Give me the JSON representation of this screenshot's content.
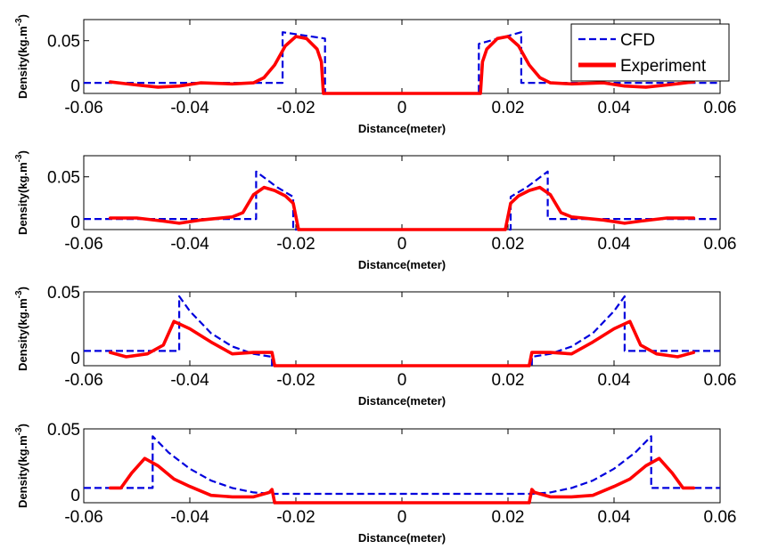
{
  "chart_data": [
    {
      "type": "line",
      "panel": 1,
      "xlabel": "Distance(meter)",
      "ylabel": "Density(kg.m^-3)",
      "xlim": [
        -0.06,
        0.06
      ],
      "ylim": [
        0,
        0.07
      ],
      "xticks": [
        "-0.06",
        "-0.04",
        "-0.02",
        "0",
        "0.02",
        "0.04",
        "0.06"
      ],
      "xtick_values": [
        -0.06,
        -0.04,
        -0.02,
        0,
        0.02,
        0.04,
        0.06
      ],
      "yticks": [
        "0",
        "0.05"
      ],
      "ytick_values": [
        0,
        0.05
      ],
      "legend": {
        "position": "top-right",
        "entries": [
          "CFD",
          "Experiment"
        ]
      },
      "series": [
        {
          "name": "CFD",
          "style": "dashed",
          "color": "#0000dd",
          "x": [
            -0.06,
            -0.0225,
            -0.0225,
            -0.0145,
            -0.0145,
            0.0145,
            0.0145,
            0.0225,
            0.0225,
            0.06
          ],
          "y": [
            0.01,
            0.01,
            0.058,
            0.052,
            0,
            0,
            0.047,
            0.058,
            0.01,
            0.01
          ]
        },
        {
          "name": "Experiment",
          "style": "solid",
          "color": "#ff0000",
          "x": [
            -0.055,
            -0.05,
            -0.046,
            -0.042,
            -0.038,
            -0.032,
            -0.028,
            -0.026,
            -0.024,
            -0.022,
            -0.02,
            -0.018,
            -0.016,
            -0.0152,
            -0.0148,
            0.0148,
            0.0152,
            0.016,
            0.018,
            0.02,
            0.022,
            0.024,
            0.026,
            0.028,
            0.032,
            0.038,
            0.042,
            0.046,
            0.05,
            0.055
          ],
          "y": [
            0.011,
            0.008,
            0.006,
            0.007,
            0.01,
            0.009,
            0.01,
            0.015,
            0.027,
            0.045,
            0.054,
            0.052,
            0.042,
            0.03,
            0,
            0,
            0.03,
            0.042,
            0.052,
            0.054,
            0.045,
            0.027,
            0.015,
            0.01,
            0.009,
            0.01,
            0.007,
            0.006,
            0.008,
            0.011
          ]
        }
      ]
    },
    {
      "type": "line",
      "panel": 2,
      "xlabel": "Distance(meter)",
      "ylabel": "Density(kg.m^-3)",
      "xlim": [
        -0.06,
        0.06
      ],
      "ylim": [
        0,
        0.07
      ],
      "xticks": [
        "-0.06",
        "-0.04",
        "-0.02",
        "0",
        "0.02",
        "0.04",
        "0.06"
      ],
      "xtick_values": [
        -0.06,
        -0.04,
        -0.02,
        0,
        0.02,
        0.04,
        0.06
      ],
      "yticks": [
        "0",
        "0.05"
      ],
      "ytick_values": [
        0,
        0.05
      ],
      "series": [
        {
          "name": "CFD",
          "style": "dashed",
          "color": "#0000dd",
          "x": [
            -0.06,
            -0.0275,
            -0.0275,
            -0.0235,
            -0.0205,
            -0.0205,
            0.0205,
            0.0205,
            0.0235,
            0.0275,
            0.0275,
            0.06
          ],
          "y": [
            0.01,
            0.01,
            0.055,
            0.04,
            0.031,
            0,
            0,
            0.031,
            0.04,
            0.055,
            0.01,
            0.01
          ]
        },
        {
          "name": "Experiment",
          "style": "solid",
          "color": "#ff0000",
          "x": [
            -0.055,
            -0.05,
            -0.045,
            -0.042,
            -0.038,
            -0.032,
            -0.03,
            -0.028,
            -0.026,
            -0.024,
            -0.022,
            -0.0205,
            -0.0195,
            0.0195,
            0.0205,
            0.022,
            0.024,
            0.026,
            0.028,
            0.03,
            0.032,
            0.038,
            0.042,
            0.045,
            0.05,
            0.055
          ],
          "y": [
            0.011,
            0.011,
            0.008,
            0.006,
            0.009,
            0.012,
            0.016,
            0.033,
            0.04,
            0.037,
            0.032,
            0.025,
            0,
            0,
            0.025,
            0.032,
            0.037,
            0.04,
            0.033,
            0.016,
            0.012,
            0.009,
            0.006,
            0.008,
            0.011,
            0.011
          ]
        }
      ]
    },
    {
      "type": "line",
      "panel": 3,
      "xlabel": "Distance(meter)",
      "ylabel": "Density(kg.m^-3)",
      "xlim": [
        -0.06,
        0.06
      ],
      "ylim": [
        0,
        0.05
      ],
      "xticks": [
        "-0.06",
        "-0.04",
        "-0.02",
        "0",
        "0.02",
        "0.04",
        "0.06"
      ],
      "xtick_values": [
        -0.06,
        -0.04,
        -0.02,
        0,
        0.02,
        0.04,
        0.06
      ],
      "yticks": [
        "0",
        "0.05"
      ],
      "ytick_values": [
        0,
        0.05
      ],
      "series": [
        {
          "name": "CFD",
          "style": "dashed",
          "color": "#0000dd",
          "x": [
            -0.06,
            -0.042,
            -0.042,
            -0.04,
            -0.036,
            -0.032,
            -0.028,
            -0.0245,
            -0.0245,
            0.0245,
            0.0245,
            0.028,
            0.032,
            0.036,
            0.04,
            0.042,
            0.042,
            0.06
          ],
          "y": [
            0.01,
            0.01,
            0.047,
            0.037,
            0.022,
            0.013,
            0.008,
            0.006,
            0,
            0,
            0.006,
            0.008,
            0.013,
            0.022,
            0.037,
            0.047,
            0.01,
            0.01
          ]
        },
        {
          "name": "Experiment",
          "style": "solid",
          "color": "#ff0000",
          "x": [
            -0.055,
            -0.052,
            -0.048,
            -0.045,
            -0.043,
            -0.04,
            -0.036,
            -0.032,
            -0.028,
            -0.026,
            -0.0245,
            -0.024,
            0.024,
            0.0245,
            0.026,
            0.028,
            0.032,
            0.036,
            0.04,
            0.043,
            0.045,
            0.048,
            0.052,
            0.055
          ],
          "y": [
            0.009,
            0.006,
            0.008,
            0.014,
            0.03,
            0.025,
            0.016,
            0.008,
            0.009,
            0.009,
            0.009,
            0,
            0,
            0.009,
            0.009,
            0.009,
            0.008,
            0.016,
            0.025,
            0.03,
            0.014,
            0.008,
            0.006,
            0.009
          ]
        }
      ]
    },
    {
      "type": "line",
      "panel": 4,
      "xlabel": "Distance(meter)",
      "ylabel": "Density(kg.m^-3)",
      "xlim": [
        -0.06,
        0.06
      ],
      "ylim": [
        0,
        0.05
      ],
      "xticks": [
        "-0.06",
        "-0.04",
        "-0.02",
        "0",
        "0.02",
        "0.04",
        "0.06"
      ],
      "xtick_values": [
        -0.06,
        -0.04,
        -0.02,
        0,
        0.02,
        0.04,
        0.06
      ],
      "yticks": [
        "0",
        "0.05"
      ],
      "ytick_values": [
        0,
        0.05
      ],
      "series": [
        {
          "name": "CFD",
          "style": "dashed",
          "color": "#0000dd",
          "x": [
            -0.06,
            -0.047,
            -0.047,
            -0.044,
            -0.04,
            -0.036,
            -0.032,
            -0.028,
            -0.0245,
            0.0245,
            0.028,
            0.032,
            0.036,
            0.04,
            0.044,
            0.047,
            0.047,
            0.06
          ],
          "y": [
            0.01,
            0.01,
            0.045,
            0.034,
            0.023,
            0.015,
            0.01,
            0.007,
            0.006,
            0.006,
            0.007,
            0.01,
            0.015,
            0.023,
            0.034,
            0.045,
            0.01,
            0.01
          ]
        },
        {
          "name": "Experiment",
          "style": "solid",
          "color": "#ff0000",
          "x": [
            -0.055,
            -0.053,
            -0.051,
            -0.0485,
            -0.046,
            -0.043,
            -0.04,
            -0.036,
            -0.032,
            -0.028,
            -0.025,
            -0.0245,
            -0.024,
            0.024,
            0.0245,
            0.025,
            0.028,
            0.032,
            0.036,
            0.04,
            0.043,
            0.046,
            0.0485,
            0.051,
            0.053,
            0.055
          ],
          "y": [
            0.01,
            0.01,
            0.02,
            0.03,
            0.025,
            0.016,
            0.011,
            0.005,
            0.004,
            0.004,
            0.007,
            0.009,
            0,
            0,
            0.009,
            0.007,
            0.004,
            0.004,
            0.005,
            0.011,
            0.016,
            0.025,
            0.03,
            0.02,
            0.01,
            0.01
          ]
        }
      ]
    }
  ]
}
